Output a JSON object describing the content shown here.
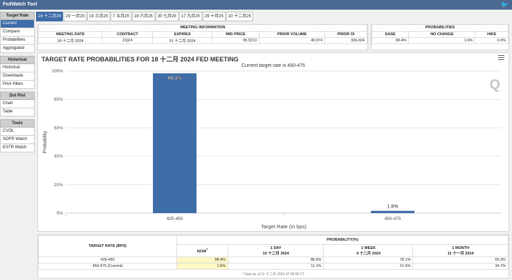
{
  "app": {
    "title": "FedWatch Tool",
    "logo_icon": "twitter-icon"
  },
  "sidebar": [
    {
      "header": "Target Rate",
      "items": [
        {
          "label": "Current",
          "active": true
        },
        {
          "label": "Compare"
        },
        {
          "label": "Probabilities"
        },
        {
          "label": "Aggregated"
        }
      ]
    },
    {
      "header": "Historical",
      "items": [
        {
          "label": "Historical"
        },
        {
          "label": "Downloads"
        },
        {
          "label": "Prior Hikes"
        }
      ]
    },
    {
      "header": "Dot Plot",
      "items": [
        {
          "label": "Chart"
        },
        {
          "label": "Table"
        }
      ]
    },
    {
      "header": "Tools",
      "items": [
        {
          "label": "CVOL"
        },
        {
          "label": "SOFR Watch"
        },
        {
          "label": "ESTR Watch"
        }
      ]
    }
  ],
  "tabs": [
    {
      "label": "18 十二月24",
      "active": true
    },
    {
      "label": "29 一月25"
    },
    {
      "label": "19 三月25"
    },
    {
      "label": "7 五月25"
    },
    {
      "label": "18 六月25"
    },
    {
      "label": "30 七月25"
    },
    {
      "label": "17 九月25"
    },
    {
      "label": "29 十月25"
    },
    {
      "label": "10 十二月25"
    }
  ],
  "meeting_info": {
    "title": "MEETING INFORMATION",
    "headers": [
      "MEETING DATE",
      "CONTRACT",
      "EXPIRES",
      "MID PRICE",
      "PRIOR VOLUME",
      "PRIOR OI"
    ],
    "row": [
      "18 十二月 2024",
      "ZQZ4",
      "31 十二月 2024",
      "95.5213",
      "49,974",
      "336,604"
    ]
  },
  "probabilities": {
    "title": "PROBABILITIES",
    "headers": [
      "EASE",
      "NO CHANGE",
      "HIKE"
    ],
    "row": [
      "98.4%",
      "1.6%",
      "0.0%"
    ]
  },
  "chart": {
    "menu_icon": "hamburger-menu-icon",
    "watermark": "Q"
  },
  "chart_data": {
    "type": "bar",
    "title": "TARGET RATE PROBABILITIES FOR 18 十二月 2024 FED MEETING",
    "subtitle": "Current target rate is 450-475",
    "categories": [
      "425-450",
      "450-475"
    ],
    "values": [
      98.4,
      1.6
    ],
    "data_labels": [
      "98.4%",
      "1.6%"
    ],
    "xlabel": "Target Rate (in bps)",
    "ylabel": "Probability",
    "ylim": [
      0,
      100
    ],
    "yticks": [
      "0%",
      "20%",
      "40%",
      "60%",
      "80%",
      "100%"
    ],
    "grid": true,
    "color": "#3f6da8"
  },
  "bottom_table": {
    "rate_header": "TARGET RATE (BPS)",
    "prob_header": "PROBABILITY(%)",
    "cols": [
      {
        "l1": "NOW",
        "sup": "*",
        "l2": ""
      },
      {
        "l1": "1 DAY",
        "l2": "10 十二月 2024"
      },
      {
        "l1": "1 WEEK",
        "l2": "4 十二月 2024"
      },
      {
        "l1": "1 MONTH",
        "l2": "11 十一月 2024"
      }
    ],
    "rows": [
      {
        "rate": "425-450",
        "values": [
          "98.4%",
          "88.9%",
          "78.1%",
          "65.3%"
        ]
      },
      {
        "rate": "450-475 (Current)",
        "values": [
          "1.6%",
          "11.1%",
          "21.9%",
          "34.7%"
        ]
      }
    ],
    "footnote": "* Data as of 11 十二月 2024 07:08:58 CT"
  }
}
